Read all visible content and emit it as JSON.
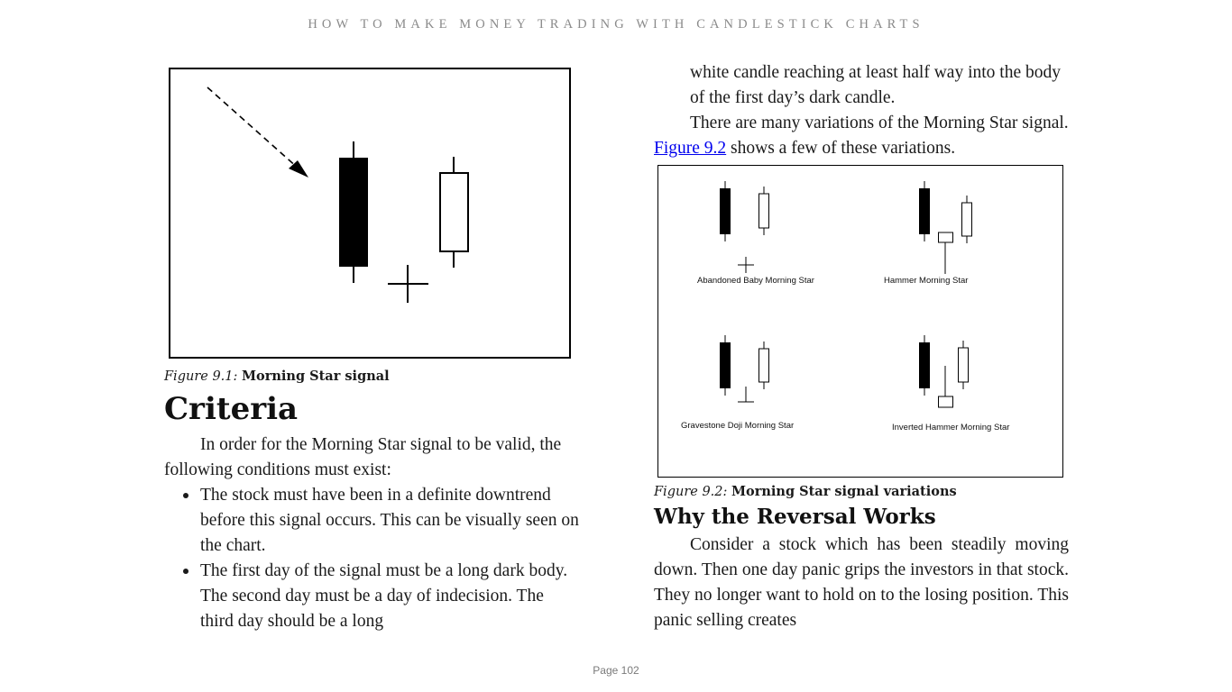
{
  "header": {
    "running_title": "HOW TO MAKE MONEY TRADING WITH CANDLESTICK CHARTS"
  },
  "figure_1": {
    "caption_label": "Figure 9.1:",
    "caption_title": "Morning Star signal"
  },
  "criteria": {
    "heading": "Criteria",
    "intro": "In order for the Morning Star signal to be valid, the following conditions must exist:",
    "bullets": [
      "The stock must have been in a definite downtrend before this signal occurs. This can be visually seen on the chart.",
      "The first day of the signal must be a long dark body. The second day must be a day of indecision. The third day should be a long"
    ]
  },
  "right_column": {
    "continuation": "white candle reaching at least half way into the body of the first day’s dark candle.",
    "variations_before": "There are many variations of the Morning Star signal.",
    "variations_link": "Figure 9.2",
    "variations_after": "shows a few of these variations."
  },
  "figure_2": {
    "labels": [
      "Abandoned Baby Morning Star",
      "Hammer Morning Star",
      "Gravestone Doji Morning Star",
      "Inverted Hammer Morning Star"
    ],
    "caption_label": "Figure 9.2:",
    "caption_title": "Morning Star signal variations"
  },
  "reversal": {
    "heading": "Why the Reversal Works",
    "text": "Consider a stock which has been steadily moving down. Then one day panic grips the investors in that stock. They no longer want to hold on to the losing position. This panic selling creates"
  },
  "footer": {
    "page": "Page 102"
  }
}
